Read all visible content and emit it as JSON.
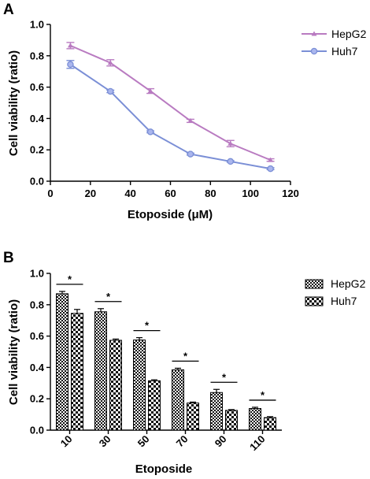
{
  "panels": {
    "a": "A",
    "b": "B"
  },
  "chart_data": [
    {
      "type": "line",
      "panel": "A",
      "xlabel": "Etoposide (μM)",
      "ylabel": "Cell viability (ratio)",
      "xlim": [
        0,
        120
      ],
      "ylim": [
        0,
        1.0
      ],
      "xticks": [
        "0",
        "20",
        "40",
        "60",
        "80",
        "100",
        "120"
      ],
      "yticks": [
        "0.0",
        "0.2",
        "0.4",
        "0.6",
        "0.8",
        "1.0"
      ],
      "x": [
        10,
        30,
        50,
        70,
        90,
        110
      ],
      "series": [
        {
          "name": "HepG2",
          "color": "#b97bc1",
          "marker": "triangle",
          "values": [
            0.865,
            0.755,
            0.575,
            0.385,
            0.24,
            0.135
          ],
          "errors": [
            0.02,
            0.02,
            0.015,
            0.01,
            0.02,
            0.008
          ]
        },
        {
          "name": "Huh7",
          "color": "#7b8fd6",
          "marker": "circle",
          "values": [
            0.745,
            0.573,
            0.315,
            0.173,
            0.126,
            0.08
          ],
          "errors": [
            0.025,
            0.008,
            0.006,
            0.006,
            0.005,
            0.006
          ]
        }
      ],
      "legend_position": "top-right",
      "grid": false
    },
    {
      "type": "bar",
      "panel": "B",
      "xlabel": "Etoposide",
      "ylabel": "Cell viability (ratio)",
      "ylim": [
        0,
        1.0
      ],
      "yticks": [
        "0.0",
        "0.2",
        "0.4",
        "0.6",
        "0.8",
        "1.0"
      ],
      "categories": [
        "10",
        "30",
        "50",
        "70",
        "90",
        "110"
      ],
      "series": [
        {
          "name": "HepG2",
          "pattern": "fine-checker",
          "values": [
            0.87,
            0.755,
            0.575,
            0.385,
            0.24,
            0.138
          ],
          "errors": [
            0.015,
            0.02,
            0.015,
            0.01,
            0.02,
            0.008
          ]
        },
        {
          "name": "Huh7",
          "pattern": "coarse-checker",
          "values": [
            0.745,
            0.573,
            0.315,
            0.173,
            0.126,
            0.08
          ],
          "errors": [
            0.025,
            0.008,
            0.006,
            0.006,
            0.005,
            0.006
          ]
        }
      ],
      "significance_marker": "*",
      "legend_position": "top-right",
      "grid": false
    }
  ]
}
